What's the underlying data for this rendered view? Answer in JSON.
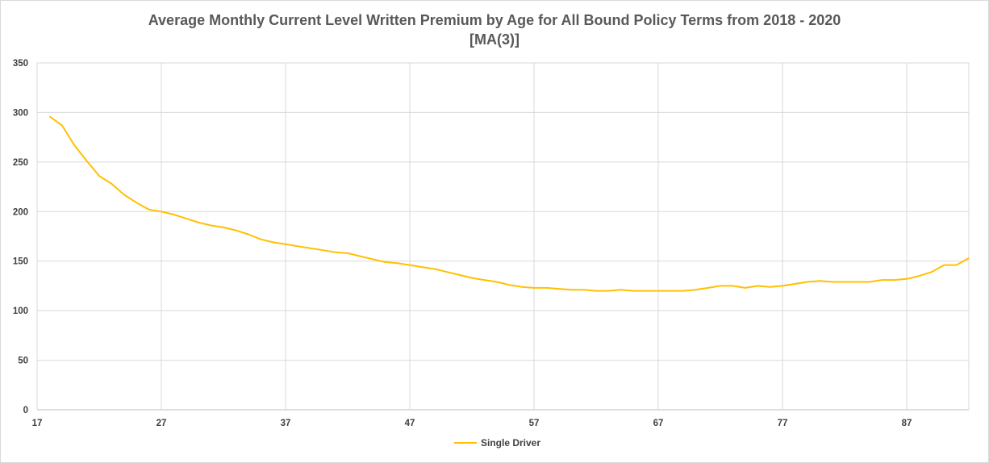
{
  "chart_data": {
    "type": "line",
    "title": "Average Monthly Current Level Written Premium by Age for All Bound Policy Terms from 2018 - 2020",
    "subtitle": "[MA(3)]",
    "xlabel": "",
    "ylabel": "",
    "xlim": [
      17,
      92
    ],
    "ylim": [
      0,
      350
    ],
    "x_ticks": [
      17,
      27,
      37,
      47,
      57,
      67,
      77,
      87
    ],
    "y_ticks": [
      0,
      50,
      100,
      150,
      200,
      250,
      300,
      350
    ],
    "grid": true,
    "legend_position": "bottom",
    "series": [
      {
        "name": "Single Driver",
        "color": "#ffc000",
        "x": [
          18,
          19,
          20,
          21,
          22,
          23,
          24,
          25,
          26,
          27,
          28,
          29,
          30,
          31,
          32,
          33,
          34,
          35,
          36,
          37,
          38,
          39,
          40,
          41,
          42,
          43,
          44,
          45,
          46,
          47,
          48,
          49,
          50,
          51,
          52,
          53,
          54,
          55,
          56,
          57,
          58,
          59,
          60,
          61,
          62,
          63,
          64,
          65,
          66,
          67,
          68,
          69,
          70,
          71,
          72,
          73,
          74,
          75,
          76,
          77,
          78,
          79,
          80,
          81,
          82,
          83,
          84,
          85,
          86,
          87,
          88,
          89,
          90,
          91,
          92
        ],
        "values": [
          296,
          287,
          267,
          251,
          236,
          228,
          217,
          209,
          202,
          200,
          197,
          193,
          189,
          186,
          184,
          181,
          177,
          172,
          169,
          167,
          165,
          163,
          161,
          159,
          158,
          155,
          152,
          149,
          148,
          146,
          144,
          142,
          139,
          136,
          133,
          131,
          129,
          126,
          124,
          123,
          123,
          122,
          121,
          121,
          120,
          120,
          121,
          120,
          120,
          120,
          120,
          120,
          121,
          123,
          125,
          125,
          123,
          125,
          124,
          125,
          127,
          129,
          130,
          129,
          129,
          129,
          129,
          131,
          131,
          132,
          135,
          139,
          146,
          146,
          153
        ]
      }
    ]
  }
}
